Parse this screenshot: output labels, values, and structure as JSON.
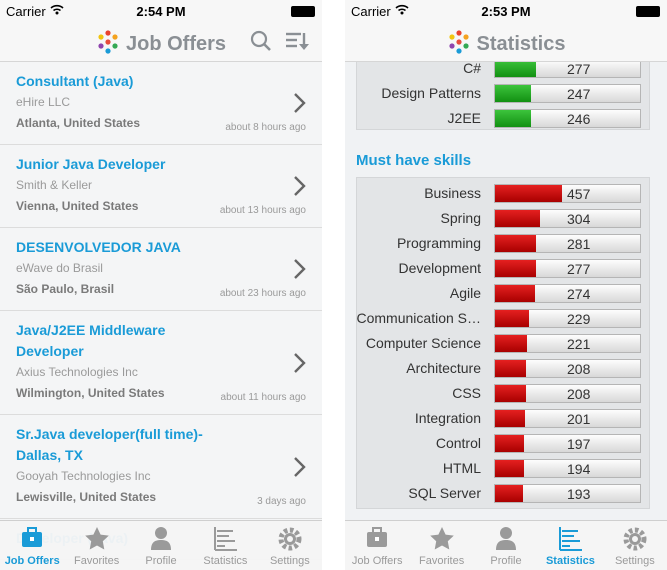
{
  "screens": [
    {
      "status_bar": {
        "carrier": "Carrier",
        "time": "2:54 PM"
      },
      "title": "Job Offers",
      "jobs": [
        {
          "title": "Consultant (Java)",
          "company": "eHire LLC",
          "location": "Atlanta, United States",
          "posted": "about 8 hours ago"
        },
        {
          "title": "Junior Java Developer",
          "company": "Smith & Keller",
          "location": "Vienna, United States",
          "posted": "about 13 hours ago"
        },
        {
          "title": "DESENVOLVEDOR JAVA",
          "company": "eWave do Brasil",
          "location": "São Paulo, Brasil",
          "posted": "about 23 hours ago"
        },
        {
          "title": "Java/J2EE Middleware Developer",
          "company": "Axius Technologies Inc",
          "location": "Wilmington, United States",
          "posted": "about 11 hours ago"
        },
        {
          "title": "Sr.Java developer(full time)-Dallas, TX",
          "company": "Gooyah Technologies Inc",
          "location": "Lewisville, United States",
          "posted": "3 days ago"
        },
        {
          "title": "Developer (Java)"
        }
      ],
      "tabs": [
        "Job Offers",
        "Favorites",
        "Profile",
        "Statistics",
        "Settings"
      ],
      "active_tab": 0
    },
    {
      "status_bar": {
        "carrier": "Carrier",
        "time": "2:53 PM"
      },
      "title": "Statistics",
      "top_skills": [
        {
          "name": "C#",
          "value": 277
        },
        {
          "name": "Design Patterns",
          "value": 247
        },
        {
          "name": "J2EE",
          "value": 246
        }
      ],
      "section": "Must have skills",
      "must_have_skills": [
        {
          "name": "Business",
          "value": 457
        },
        {
          "name": "Spring",
          "value": 304
        },
        {
          "name": "Programming",
          "value": 281
        },
        {
          "name": "Development",
          "value": 277
        },
        {
          "name": "Agile",
          "value": 274
        },
        {
          "name": "Communication S…",
          "value": 229
        },
        {
          "name": "Computer Science",
          "value": 221
        },
        {
          "name": "Architecture",
          "value": 208
        },
        {
          "name": "CSS",
          "value": 208
        },
        {
          "name": "Integration",
          "value": 201
        },
        {
          "name": "Control",
          "value": 197
        },
        {
          "name": "HTML",
          "value": 194
        },
        {
          "name": "SQL Server",
          "value": 193
        }
      ],
      "tabs": [
        "Job Offers",
        "Favorites",
        "Profile",
        "Statistics",
        "Settings"
      ],
      "active_tab": 3
    }
  ]
}
